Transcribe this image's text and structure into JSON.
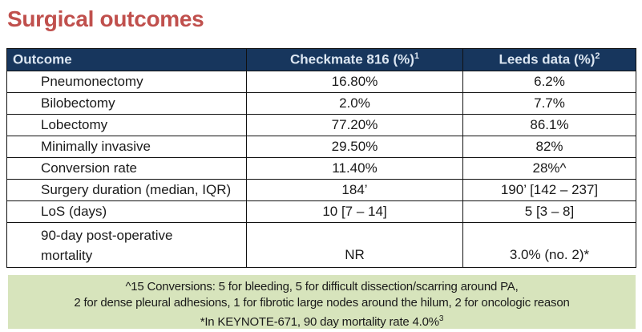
{
  "title": "Surgical outcomes",
  "colors": {
    "title_text": "#c0504d",
    "header_bg": "#17365d",
    "header_text": "#dce6f1",
    "footnote_bg": "#d7e4bc",
    "border": "#111111"
  },
  "table": {
    "headers": [
      {
        "label": "Outcome",
        "sup": ""
      },
      {
        "label": "Checkmate 816 (%)",
        "sup": "1"
      },
      {
        "label": "Leeds data (%)",
        "sup": "2"
      }
    ],
    "rows": [
      {
        "outcome": "Pneumonectomy",
        "checkmate": "16.80%",
        "leeds": "6.2%"
      },
      {
        "outcome": "Bilobectomy",
        "checkmate": "2.0%",
        "leeds": "7.7%"
      },
      {
        "outcome": "Lobectomy",
        "checkmate": "77.20%",
        "leeds": "86.1%"
      },
      {
        "outcome": "Minimally invasive",
        "checkmate": "29.50%",
        "leeds": "82%"
      },
      {
        "outcome": "Conversion rate",
        "checkmate": "11.40%",
        "leeds": "28%^"
      },
      {
        "outcome": "Surgery duration (median, IQR)",
        "checkmate": "184’",
        "leeds": "190’ [142 – 237]"
      },
      {
        "outcome": "LoS (days)",
        "checkmate": "10 [7 – 14]",
        "leeds": "5 [3 – 8]"
      },
      {
        "outcome": "90-day post-operative mortality",
        "checkmate": "NR",
        "leeds": "3.0% (no. 2)*"
      }
    ]
  },
  "footnote": {
    "line1": "^15 Conversions: 5 for bleeding, 5 for difficult dissection/scarring around PA,",
    "line2": "2 for dense pleural adhesions, 1 for fibrotic large nodes around the hilum, 2 for oncologic reason",
    "line3": "*In KEYNOTE-671, 90 day mortality rate 4.0%",
    "line3_sup": "3"
  }
}
